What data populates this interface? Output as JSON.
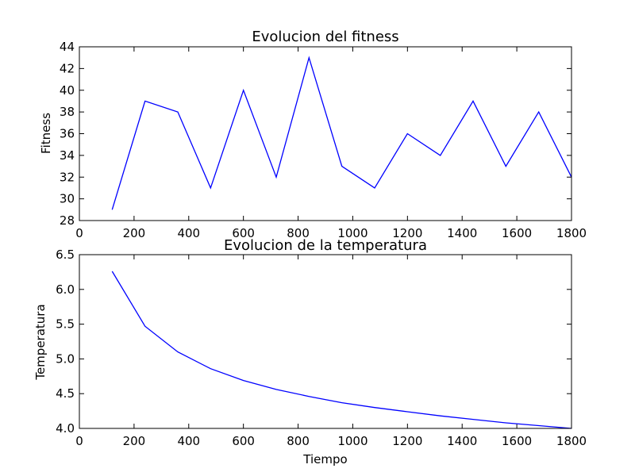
{
  "chart_data": [
    {
      "type": "line",
      "title": "Evolucion del fitness",
      "xlabel": "",
      "ylabel": "Fitness",
      "xlim": [
        0,
        1800
      ],
      "ylim": [
        28,
        44
      ],
      "xticks": [
        0,
        200,
        400,
        600,
        800,
        1000,
        1200,
        1400,
        1600,
        1800
      ],
      "yticks": [
        28,
        30,
        32,
        34,
        36,
        38,
        40,
        42,
        44
      ],
      "grid": false,
      "series": [
        {
          "color": "#0000ff",
          "x": [
            120,
            240,
            360,
            480,
            600,
            720,
            840,
            960,
            1080,
            1200,
            1320,
            1440,
            1560,
            1680,
            1800
          ],
          "y": [
            29,
            39,
            38,
            31,
            40,
            32,
            43,
            33,
            31,
            36,
            34,
            39,
            33,
            38,
            32
          ]
        }
      ]
    },
    {
      "type": "line",
      "title": "Evolucion de la temperatura",
      "xlabel": "Tiempo",
      "ylabel": "Temperatura",
      "xlim": [
        0,
        1800
      ],
      "ylim": [
        4.0,
        6.5
      ],
      "xticks": [
        0,
        200,
        400,
        600,
        800,
        1000,
        1200,
        1400,
        1600,
        1800
      ],
      "yticks": [
        4.0,
        4.5,
        5.0,
        5.5,
        6.0,
        6.5
      ],
      "ytick_labels": [
        "4.0",
        "4.5",
        "5.0",
        "5.5",
        "6.0",
        "6.5"
      ],
      "grid": false,
      "series": [
        {
          "color": "#0000ff",
          "x": [
            120,
            240,
            360,
            480,
            600,
            720,
            840,
            960,
            1080,
            1200,
            1320,
            1440,
            1560,
            1680,
            1800
          ],
          "y": [
            6.26,
            5.47,
            5.1,
            4.86,
            4.69,
            4.56,
            4.46,
            4.37,
            4.3,
            4.24,
            4.18,
            4.13,
            4.08,
            4.04,
            4.0
          ]
        }
      ]
    }
  ]
}
